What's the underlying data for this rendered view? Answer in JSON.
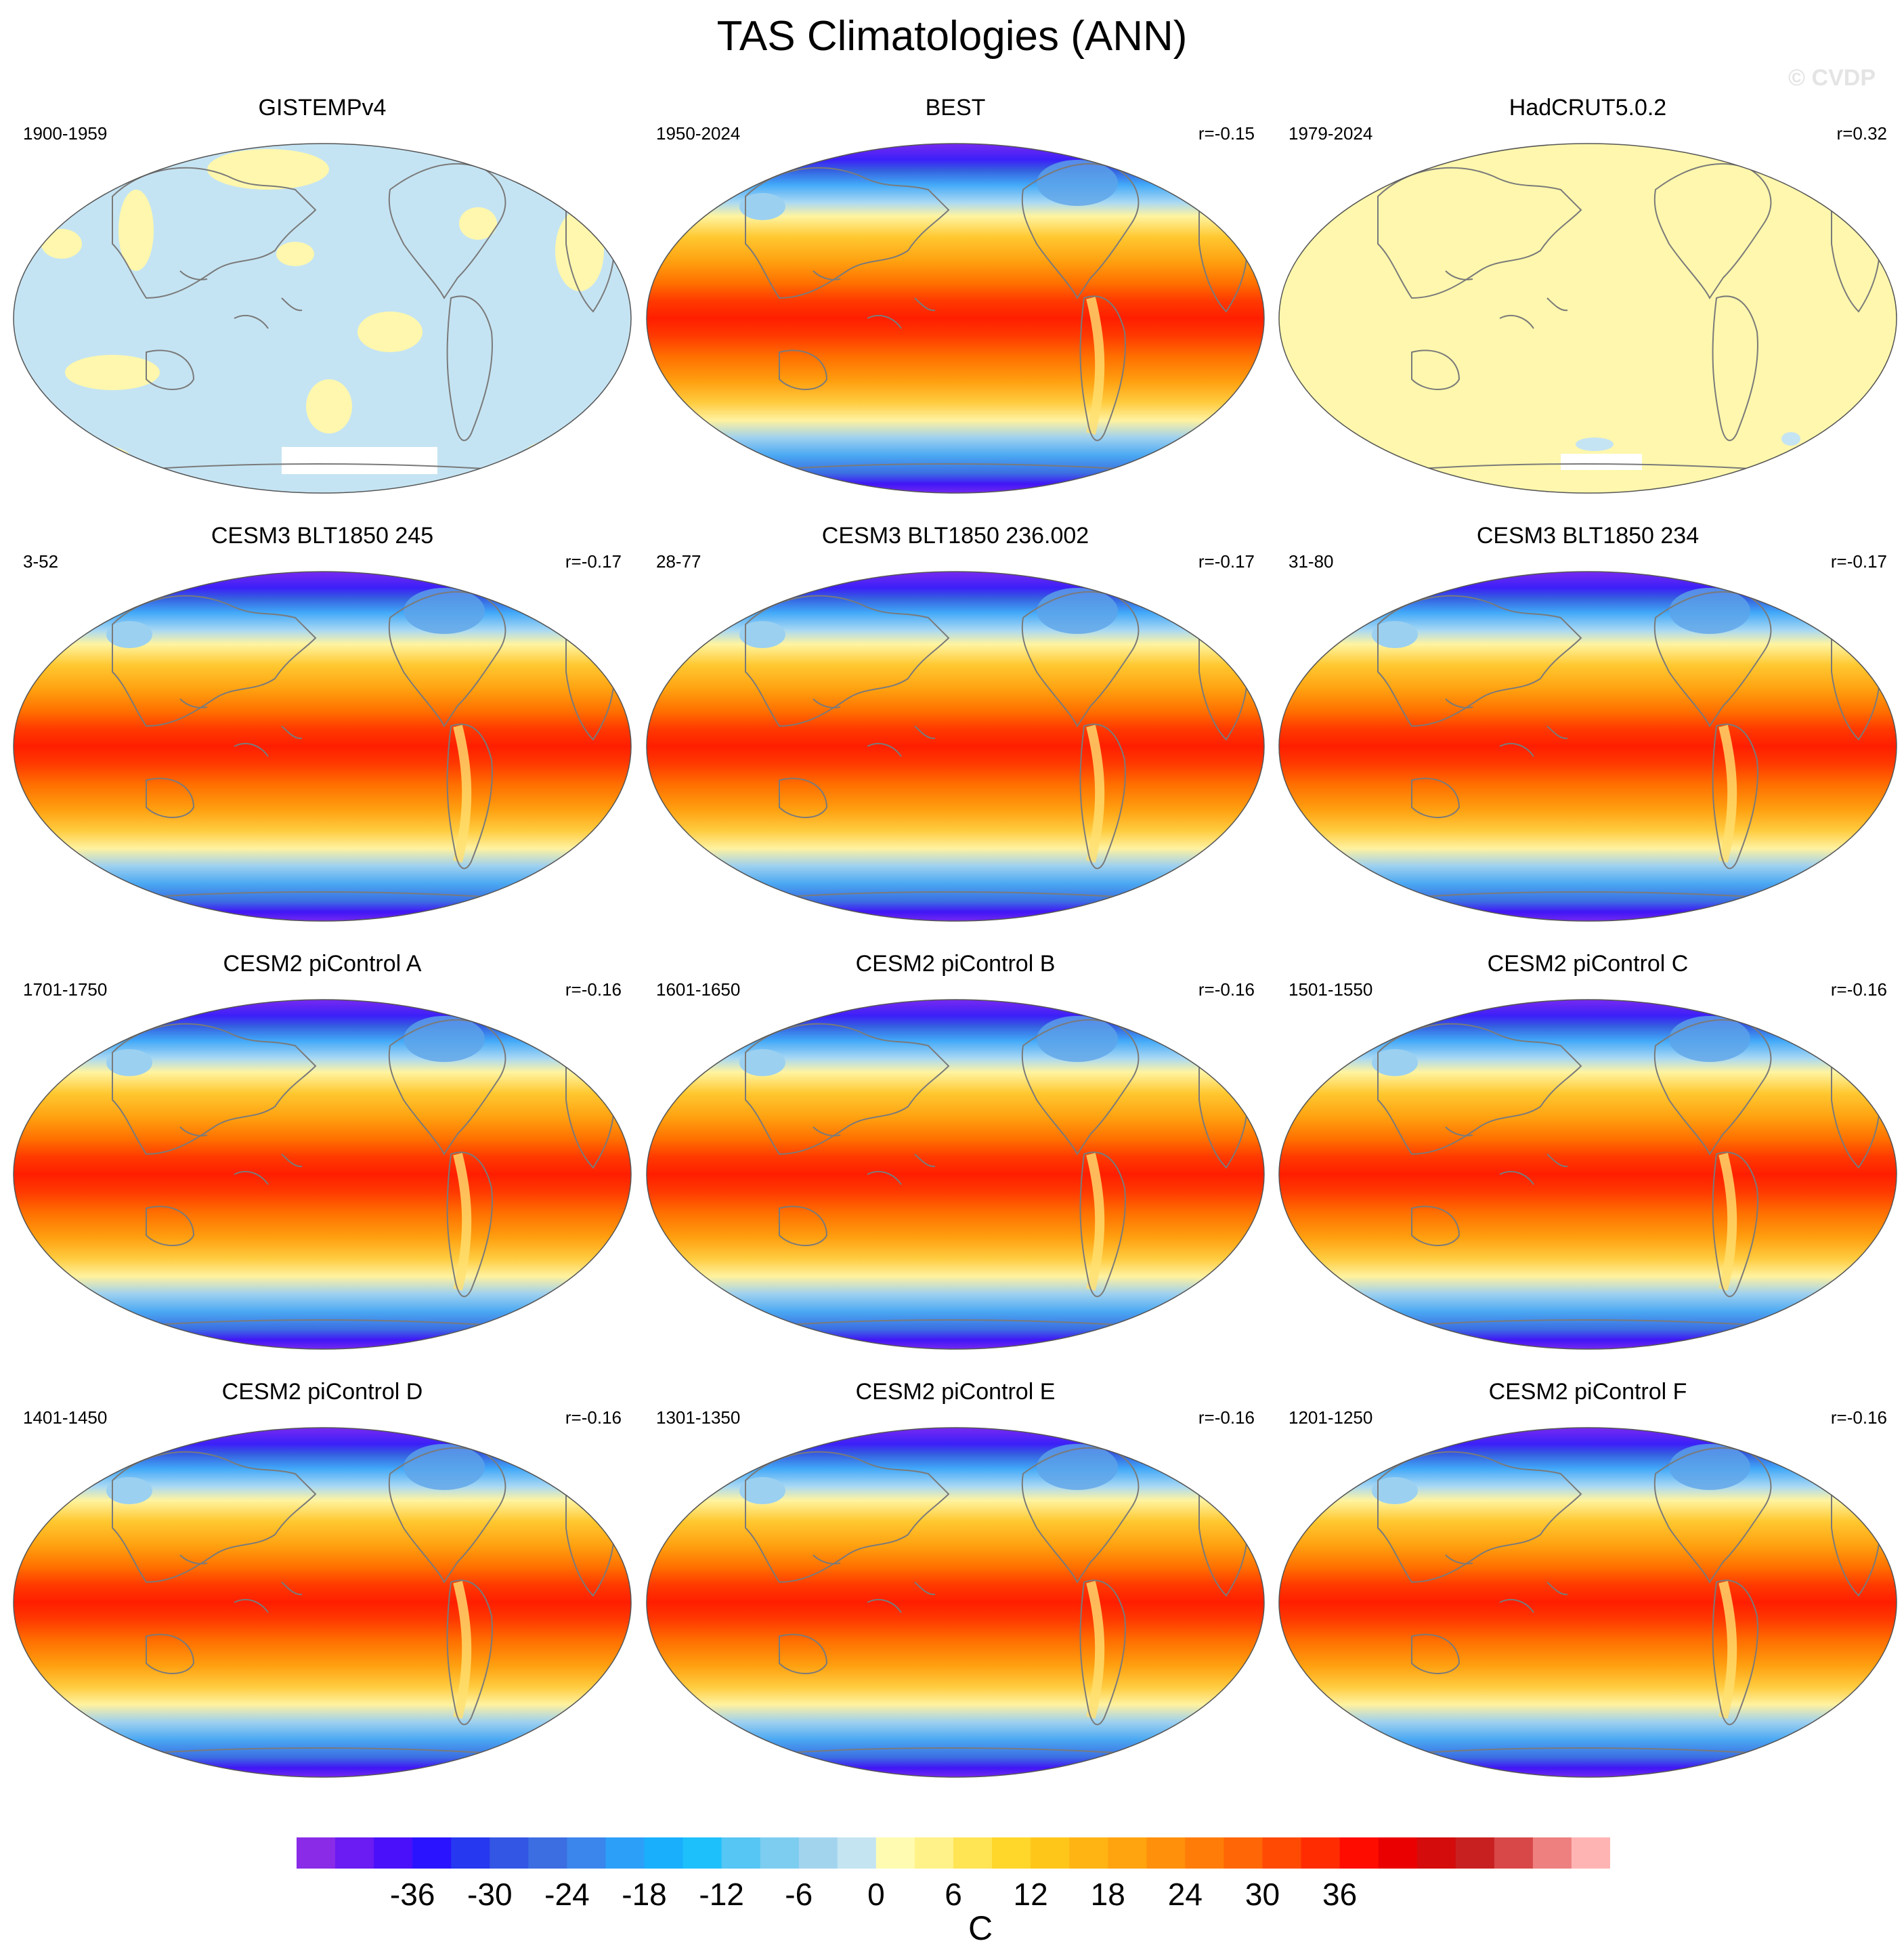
{
  "title": "TAS Climatologies (ANN)",
  "watermark": "© CVDP",
  "panels": [
    {
      "title": "GISTEMPv4",
      "period": "1900-1959",
      "corr": "",
      "style": "gistemp"
    },
    {
      "title": "BEST",
      "period": "1950-2024",
      "corr": "r=-0.15",
      "style": "field"
    },
    {
      "title": "HadCRUT5.0.2",
      "period": "1979-2024",
      "corr": "r=0.32",
      "style": "hadcrut"
    },
    {
      "title": "CESM3 BLT1850 245",
      "period": "3-52",
      "corr": "r=-0.17",
      "style": "field"
    },
    {
      "title": "CESM3 BLT1850 236.002",
      "period": "28-77",
      "corr": "r=-0.17",
      "style": "field"
    },
    {
      "title": "CESM3 BLT1850 234",
      "period": "31-80",
      "corr": "r=-0.17",
      "style": "field"
    },
    {
      "title": "CESM2 piControl A",
      "period": "1701-1750",
      "corr": "r=-0.16",
      "style": "field"
    },
    {
      "title": "CESM2 piControl B",
      "period": "1601-1650",
      "corr": "r=-0.16",
      "style": "field"
    },
    {
      "title": "CESM2 piControl C",
      "period": "1501-1550",
      "corr": "r=-0.16",
      "style": "field"
    },
    {
      "title": "CESM2 piControl D",
      "period": "1401-1450",
      "corr": "r=-0.16",
      "style": "field"
    },
    {
      "title": "CESM2 piControl E",
      "period": "1301-1350",
      "corr": "r=-0.16",
      "style": "field"
    },
    {
      "title": "CESM2 piControl F",
      "period": "1201-1250",
      "corr": "r=-0.16",
      "style": "field"
    }
  ],
  "colorbar": {
    "unit": "C",
    "tick_labels": [
      "-36",
      "-30",
      "-24",
      "-18",
      "-12",
      "-6",
      "0",
      "6",
      "12",
      "18",
      "24",
      "30",
      "36"
    ],
    "colors": [
      "#8a2be8",
      "#6a1cf2",
      "#4a10fa",
      "#2a14ff",
      "#2638f0",
      "#3456e4",
      "#3c6ee2",
      "#3a86ec",
      "#2ca0f8",
      "#1aaffc",
      "#1ec0fb",
      "#56c6f4",
      "#7ccdf0",
      "#a2d4ee",
      "#c4e4f2",
      "#fffbb0",
      "#fff288",
      "#ffe454",
      "#ffd62a",
      "#ffc61a",
      "#ffb414",
      "#ffa30f",
      "#ff900b",
      "#ff7c08",
      "#ff6606",
      "#ff4a04",
      "#ff2c02",
      "#ff0c00",
      "#ea0000",
      "#d40c0c",
      "#c82020",
      "#d84848",
      "#ee8080",
      "#ffb4b4"
    ]
  },
  "palette": {
    "gistemp_blue": "#c5e4f3",
    "gistemp_yellow": "#fef7ad",
    "missing": "#ffffff",
    "coastline": "#7a7a7a"
  }
}
